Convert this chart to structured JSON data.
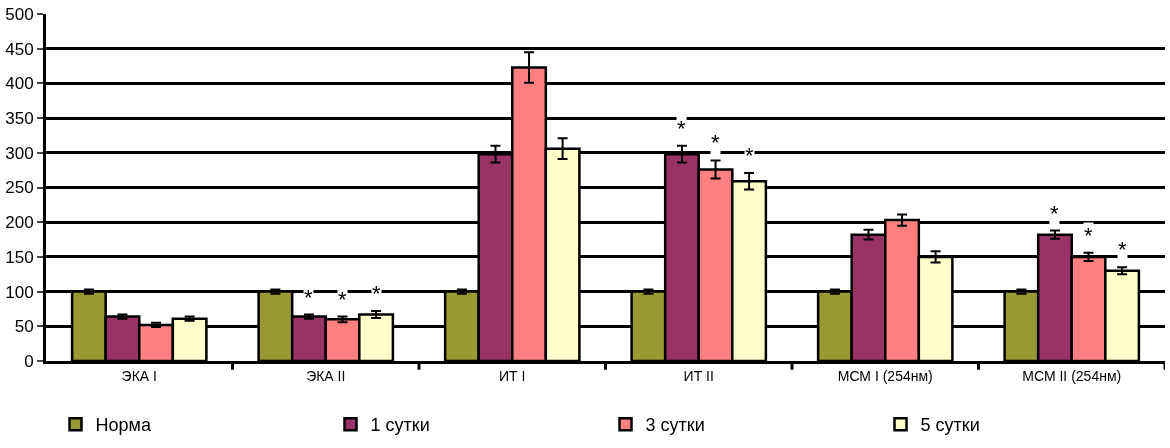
{
  "chart_data": {
    "type": "bar",
    "categories": [
      "ЭКА I",
      "ЭКА II",
      "ИТ I",
      "ИТ II",
      "МСМ I (254нм)",
      "МСМ II (254нм)"
    ],
    "series": [
      {
        "name": "Норма",
        "color": "#999933",
        "values": [
          100,
          100,
          100,
          100,
          100,
          100
        ],
        "errors": [
          3,
          3,
          3,
          3,
          3,
          3
        ]
      },
      {
        "name": "1 сутки",
        "color": "#993366",
        "values": [
          64,
          64,
          298,
          298,
          182,
          182
        ],
        "errors": [
          3,
          3,
          12,
          12,
          7,
          6
        ],
        "value_labels": [
          null,
          "*",
          null,
          "*",
          null,
          "*"
        ]
      },
      {
        "name": "3 сутки",
        "color": "#ff8080",
        "values": [
          52,
          60,
          423,
          276,
          203,
          150
        ],
        "errors": [
          3,
          4,
          22,
          13,
          8,
          6
        ],
        "value_labels": [
          null,
          "*",
          null,
          "*",
          null,
          "*"
        ]
      },
      {
        "name": "5 сутки",
        "color": "#ffffcc",
        "values": [
          61,
          67,
          306,
          259,
          150,
          130
        ],
        "errors": [
          3,
          5,
          15,
          12,
          8,
          5
        ],
        "value_labels": [
          null,
          "*",
          null,
          "*",
          null,
          "*"
        ]
      }
    ],
    "ylim": [
      0,
      500
    ],
    "yticks": [
      0,
      50,
      100,
      150,
      200,
      250,
      300,
      350,
      400,
      450,
      500
    ],
    "grid": "y",
    "legend": "bottom"
  }
}
